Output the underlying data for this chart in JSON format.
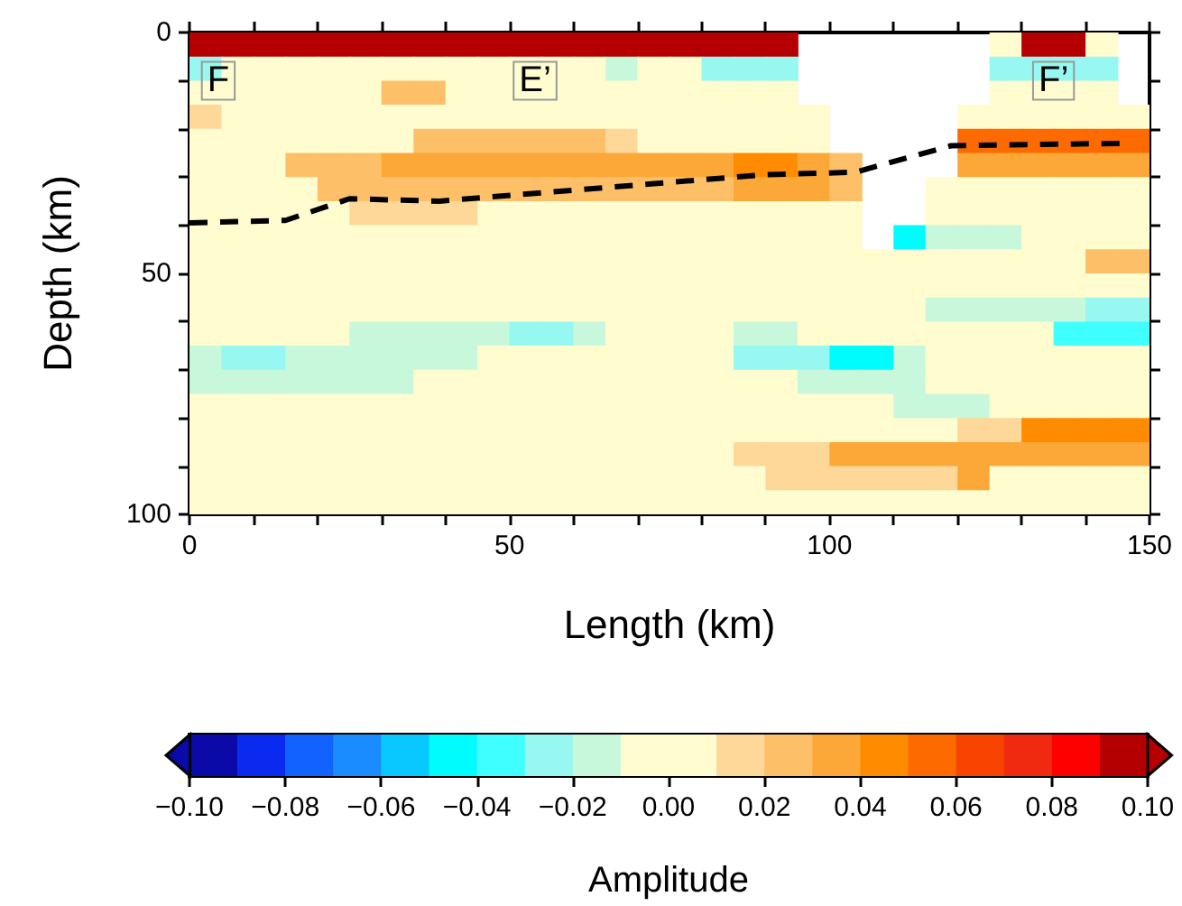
{
  "chart_data": {
    "type": "heatmap",
    "xlabel": "Length (km)",
    "ylabel": "Depth (km)",
    "clabel": "Amplitude",
    "xlim": [
      0,
      150
    ],
    "xticks": [
      0,
      {
        "value": 10,
        "label": null
      },
      {
        "value": 20,
        "label": null
      },
      {
        "value": 30,
        "label": null
      },
      {
        "value": 40,
        "label": null
      },
      50,
      {
        "value": 60,
        "label": null
      },
      {
        "value": 70,
        "label": null
      },
      {
        "value": 80,
        "label": null
      },
      {
        "value": 90,
        "label": null
      },
      100,
      {
        "value": 110,
        "label": null
      },
      {
        "value": 120,
        "label": null
      },
      {
        "value": 130,
        "label": null
      },
      {
        "value": 140,
        "label": null
      },
      150
    ],
    "ylim": [
      100,
      0
    ],
    "yticks": [
      0,
      {
        "value": 10,
        "label": null
      },
      {
        "value": 20,
        "label": null
      },
      {
        "value": 30,
        "label": null
      },
      {
        "value": 40,
        "label": null
      },
      50,
      {
        "value": 60,
        "label": null
      },
      {
        "value": 70,
        "label": null
      },
      {
        "value": 80,
        "label": null
      },
      {
        "value": 90,
        "label": null
      },
      100
    ],
    "clim": [
      -0.1,
      0.1
    ],
    "cticks": [
      {
        "value": -0.1,
        "label": "−0.10"
      },
      {
        "value": -0.08,
        "label": "−0.08"
      },
      {
        "value": -0.06,
        "label": "−0.06"
      },
      {
        "value": -0.04,
        "label": "−0.04"
      },
      {
        "value": -0.02,
        "label": "−0.02"
      },
      {
        "value": 0,
        "label": "0.00"
      },
      {
        "value": 0.02,
        "label": "0.02"
      },
      {
        "value": 0.04,
        "label": "0.04"
      },
      {
        "value": 0.06,
        "label": "0.06"
      },
      {
        "value": 0.08,
        "label": "0.08"
      },
      {
        "value": 0.1,
        "label": "0.10"
      }
    ],
    "cells": [
      [
        0.09,
        0.09,
        0.09,
        0.09,
        0.09,
        0.09,
        0.09,
        0.09,
        0.09,
        0.09,
        0.09,
        0.09,
        0.09,
        0.09,
        0.09,
        0.09,
        0.09,
        0.09,
        0.09,
        null,
        null,
        null,
        null,
        null,
        null,
        0,
        0.09,
        0.09,
        0,
        null
      ],
      [
        -0.03,
        0,
        0,
        0,
        0,
        0,
        0,
        0,
        0,
        0,
        0,
        0,
        0,
        -0.02,
        0,
        0,
        -0.03,
        -0.03,
        -0.03,
        null,
        null,
        null,
        null,
        null,
        null,
        -0.03,
        -0.03,
        -0.03,
        -0.03,
        null
      ],
      [
        0,
        0,
        0,
        0,
        0,
        0,
        0.02,
        0.02,
        0,
        0,
        0,
        0,
        0,
        0,
        0,
        0,
        0,
        0,
        0,
        null,
        null,
        null,
        null,
        null,
        null,
        0,
        0,
        0,
        0,
        null
      ],
      [
        0.01,
        0,
        0,
        0,
        0,
        0,
        0,
        0,
        0,
        0,
        0,
        0,
        0,
        0,
        0,
        0,
        0,
        0,
        0,
        0,
        null,
        null,
        null,
        null,
        0,
        0,
        0,
        0,
        0,
        0
      ],
      [
        0,
        0,
        0,
        0,
        0,
        0,
        0,
        0.02,
        0.02,
        0.02,
        0.02,
        0.02,
        0.02,
        0.01,
        0,
        0,
        0,
        0,
        0,
        0,
        null,
        null,
        null,
        null,
        0.05,
        0.05,
        0.05,
        0.05,
        0.05,
        0.05
      ],
      [
        0,
        0,
        0,
        0.02,
        0.02,
        0.02,
        0.03,
        0.03,
        0.03,
        0.03,
        0.03,
        0.03,
        0.03,
        0.03,
        0.03,
        0.03,
        0.03,
        0.04,
        0.04,
        0.03,
        0.02,
        null,
        null,
        null,
        0.03,
        0.03,
        0.03,
        0.03,
        0.03,
        0.03
      ],
      [
        0,
        0,
        0,
        0,
        0.02,
        0.02,
        0.02,
        0.02,
        0.02,
        0.02,
        0.02,
        0.02,
        0.02,
        0.02,
        0.02,
        0.02,
        0.02,
        0.03,
        0.03,
        0.03,
        0.02,
        null,
        null,
        0,
        0,
        0,
        0,
        0,
        0,
        0
      ],
      [
        0,
        0,
        0,
        0,
        0,
        0.01,
        0.01,
        0.01,
        0.01,
        0,
        0,
        0,
        0,
        0,
        0,
        0,
        0,
        0,
        0,
        0,
        0,
        null,
        null,
        0,
        0,
        0,
        0,
        0,
        0,
        0
      ],
      [
        0,
        0,
        0,
        0,
        0,
        0,
        0,
        0,
        0,
        0,
        0,
        0,
        0,
        0,
        0,
        0,
        0,
        0,
        0,
        0,
        0,
        null,
        -0.05,
        -0.02,
        -0.02,
        -0.02,
        0,
        0,
        0,
        0
      ],
      [
        0,
        0,
        0,
        0,
        0,
        0,
        0,
        0,
        0,
        0,
        0,
        0,
        0,
        0,
        0,
        0,
        0,
        0,
        0,
        0,
        0,
        0,
        0,
        0,
        0,
        0,
        0,
        0,
        0.02,
        0.02
      ],
      [
        0,
        0,
        0,
        0,
        0,
        0,
        0,
        0,
        0,
        0,
        0,
        0,
        0,
        0,
        0,
        0,
        0,
        0,
        0,
        0,
        0,
        0,
        0,
        0,
        0,
        0,
        0,
        0,
        0,
        0
      ],
      [
        0,
        0,
        0,
        0,
        0,
        0,
        0,
        0,
        0,
        0,
        0,
        0,
        0,
        0,
        0,
        0,
        0,
        0,
        0,
        0,
        0,
        0,
        0,
        -0.02,
        -0.02,
        -0.02,
        -0.02,
        -0.02,
        -0.03,
        -0.03
      ],
      [
        0,
        0,
        0,
        0,
        0,
        -0.02,
        -0.02,
        -0.02,
        -0.02,
        -0.02,
        -0.03,
        -0.03,
        -0.02,
        0,
        0,
        0,
        0,
        -0.02,
        -0.02,
        0,
        0,
        0,
        0,
        0,
        0,
        0,
        0,
        -0.04,
        -0.04,
        -0.04
      ],
      [
        -0.02,
        -0.03,
        -0.03,
        -0.02,
        -0.02,
        -0.02,
        -0.02,
        -0.02,
        -0.02,
        0,
        0,
        0,
        0,
        0,
        0,
        0,
        0,
        -0.03,
        -0.03,
        -0.03,
        -0.05,
        -0.05,
        -0.02,
        0,
        0,
        0,
        0,
        0,
        0,
        0
      ],
      [
        -0.02,
        -0.02,
        -0.02,
        -0.02,
        -0.02,
        -0.02,
        -0.02,
        0,
        0,
        0,
        0,
        0,
        0,
        0,
        0,
        0,
        0,
        0,
        0,
        -0.02,
        -0.02,
        -0.02,
        -0.02,
        0,
        0,
        0,
        0,
        0,
        0,
        0
      ],
      [
        0,
        0,
        0,
        0,
        0,
        0,
        0,
        0,
        0,
        0,
        0,
        0,
        0,
        0,
        0,
        0,
        0,
        0,
        0,
        0,
        0,
        0,
        -0.02,
        -0.02,
        -0.02,
        0,
        0,
        0,
        0,
        0
      ],
      [
        0,
        0,
        0,
        0,
        0,
        0,
        0,
        0,
        0,
        0,
        0,
        0,
        0,
        0,
        0,
        0,
        0,
        0,
        0,
        0,
        0,
        0,
        0,
        0,
        0.01,
        0.01,
        0.04,
        0.04,
        0.04,
        0.04
      ],
      [
        0,
        0,
        0,
        0,
        0,
        0,
        0,
        0,
        0,
        0,
        0,
        0,
        0,
        0,
        0,
        0,
        0,
        0.01,
        0.01,
        0.01,
        0.03,
        0.03,
        0.03,
        0.03,
        0.03,
        0.03,
        0.03,
        0.03,
        0.03,
        0.03
      ],
      [
        0,
        0,
        0,
        0,
        0,
        0,
        0,
        0,
        0,
        0,
        0,
        0,
        0,
        0,
        0,
        0,
        0,
        0,
        0.01,
        0.01,
        0.01,
        0.01,
        0.01,
        0.01,
        0.03,
        0,
        0,
        0,
        0,
        0
      ],
      [
        0,
        0,
        0,
        0,
        0,
        0,
        0,
        0,
        0,
        0,
        0,
        0,
        0,
        0,
        0,
        0,
        0,
        0,
        0,
        0,
        0,
        0,
        0,
        0,
        0,
        0,
        0,
        0,
        0,
        0
      ]
    ],
    "series": [
      {
        "type": "line",
        "color": "#000000",
        "line_style": "dashed",
        "marker": "none",
        "x": [
          0,
          15,
          25,
          39,
          76,
          90,
          104,
          119,
          146
        ],
        "values": [
          39.5,
          39,
          34.5,
          35,
          31,
          29.5,
          29,
          23.5,
          23
        ]
      }
    ],
    "annotations": [
      {
        "text": "F",
        "x": 4.5,
        "y": 10
      },
      {
        "text": "E’",
        "x": 54,
        "y": 10
      },
      {
        "text": "F’",
        "x": 135,
        "y": 10
      }
    ]
  }
}
